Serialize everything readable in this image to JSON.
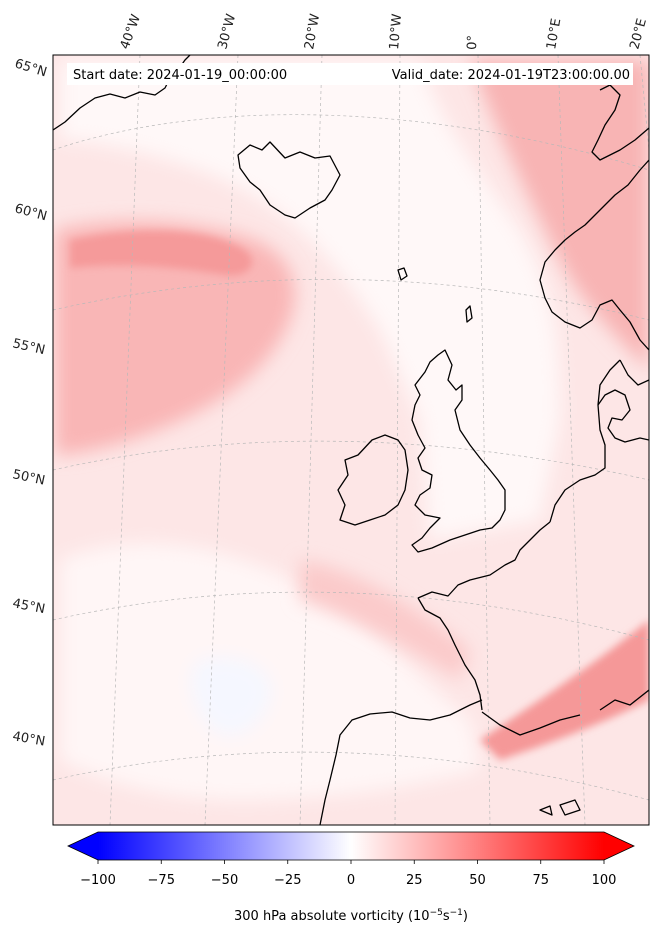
{
  "header": {
    "start_date": "Start date: 2024-01-19_00:00:00",
    "valid_date": "Valid_date: 2024-01-19T23:00:00.00"
  },
  "longitude_labels": [
    "40°W",
    "30°W",
    "20°W",
    "10°W",
    "0°",
    "10°E",
    "20°E"
  ],
  "latitude_labels": [
    "65°N",
    "60°N",
    "55°N",
    "50°N",
    "45°N",
    "40°N"
  ],
  "colorbar": {
    "label": "300 hPa absolute vorticity (10$^{-5}$s$^{-1}$)",
    "label_display": "300 hPa absolute vorticity (10",
    "label_exp1": "−5",
    "label_mid": "s",
    "label_exp2": "−1",
    "label_end": ")",
    "ticks": [
      "−100",
      "−75",
      "−50",
      "−25",
      "0",
      "25",
      "50",
      "75",
      "100"
    ],
    "min": -100,
    "max": 100,
    "colormap": "bwr",
    "extend": "both"
  },
  "colors": {
    "coastline": "#000000",
    "gridline": "#bbbbbb",
    "negative_extreme": "#0000ff",
    "positive_extreme": "#ff0000",
    "neutral": "#ffffff"
  }
}
